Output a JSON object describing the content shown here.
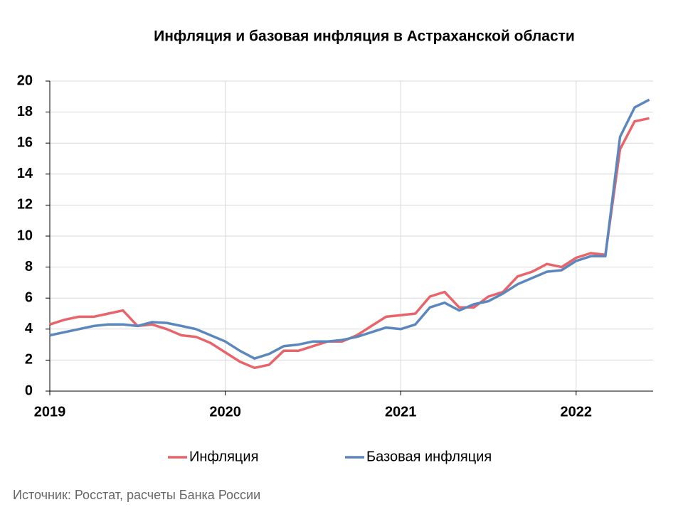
{
  "chart_data": {
    "type": "line",
    "title": "Инфляция и базовая инфляция в  Астраханской области",
    "source": "Источник: Росстат, расчеты Банка России",
    "categories": [
      "2019",
      null,
      null,
      null,
      null,
      null,
      null,
      null,
      null,
      null,
      null,
      null,
      "2020",
      null,
      null,
      null,
      null,
      null,
      null,
      null,
      null,
      null,
      null,
      null,
      "2021",
      null,
      null,
      null,
      null,
      null,
      null,
      null,
      null,
      null,
      null,
      null,
      "2022",
      null,
      null,
      null,
      null,
      null
    ],
    "series": [
      {
        "name": "Инфляция",
        "color": "#e8646a",
        "values": [
          4.3,
          4.6,
          4.8,
          4.8,
          5.0,
          5.2,
          4.2,
          4.3,
          4.0,
          3.6,
          3.5,
          3.1,
          2.5,
          1.9,
          1.5,
          1.7,
          2.6,
          2.6,
          2.9,
          3.2,
          3.2,
          3.6,
          4.2,
          4.8,
          4.9,
          5.0,
          6.1,
          6.4,
          5.4,
          5.4,
          6.1,
          6.4,
          7.4,
          7.7,
          8.2,
          8.0,
          8.6,
          8.9,
          8.8,
          15.6,
          17.4,
          17.6
        ]
      },
      {
        "name": "Базовая инфляция",
        "color": "#5b87bd",
        "values": [
          3.6,
          3.8,
          4.0,
          4.2,
          4.3,
          4.3,
          4.2,
          4.45,
          4.4,
          4.2,
          4.0,
          3.6,
          3.2,
          2.6,
          2.1,
          2.4,
          2.9,
          3.0,
          3.2,
          3.2,
          3.3,
          3.5,
          3.8,
          4.1,
          4.0,
          4.3,
          5.4,
          5.7,
          5.2,
          5.6,
          5.8,
          6.3,
          6.9,
          7.3,
          7.7,
          7.8,
          8.4,
          8.7,
          8.7,
          16.4,
          18.3,
          18.8
        ]
      }
    ],
    "ylim": [
      0,
      20
    ],
    "yticks": [
      0,
      2,
      4,
      6,
      8,
      10,
      12,
      14,
      16,
      18,
      20
    ],
    "grid": true,
    "legend": "bottom"
  }
}
